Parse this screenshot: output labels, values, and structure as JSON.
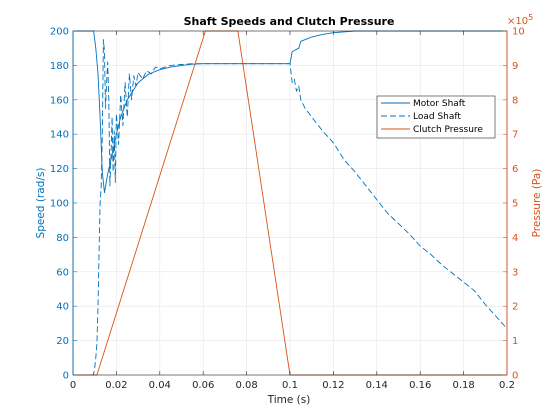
{
  "chart_data": {
    "type": "line",
    "title": "Shaft Speeds and Clutch Pressure",
    "xlabel": "Time (s)",
    "ylabel_left": "Speed (rad/s)",
    "ylabel_right": "Pressure (Pa)",
    "right_axis_multiplier": "×10",
    "right_axis_exponent": "5",
    "xlim": [
      0,
      0.2
    ],
    "ylim_left": [
      0,
      200
    ],
    "ylim_right": [
      0,
      10
    ],
    "grid": true,
    "legend_position": "upper-right",
    "colors": {
      "left_axis": "#0072BD",
      "right_axis": "#D95319",
      "grid": "#e6e6e6",
      "box": "#262626"
    },
    "x_ticks": [
      0,
      0.02,
      0.04,
      0.06,
      0.08,
      0.1,
      0.12,
      0.14,
      0.16,
      0.18,
      0.2
    ],
    "x_tick_labels": [
      "0",
      "0.02",
      "0.04",
      "0.06",
      "0.08",
      "0.1",
      "0.12",
      "0.14",
      "0.16",
      "0.18",
      "0.2"
    ],
    "y_left_ticks": [
      0,
      20,
      40,
      60,
      80,
      100,
      120,
      140,
      160,
      180,
      200
    ],
    "y_left_tick_labels": [
      "0",
      "20",
      "40",
      "60",
      "80",
      "100",
      "120",
      "140",
      "160",
      "180",
      "200"
    ],
    "y_right_ticks": [
      0,
      1,
      2,
      3,
      4,
      5,
      6,
      7,
      8,
      9,
      10
    ],
    "y_right_tick_labels": [
      "0",
      "1",
      "2",
      "3",
      "4",
      "5",
      "6",
      "7",
      "8",
      "9",
      "10"
    ],
    "series": [
      {
        "name": "Motor Shaft",
        "axis": "left",
        "color": "#0072BD",
        "style": "solid",
        "x": [
          0.0,
          0.0095,
          0.0105,
          0.0115,
          0.0125,
          0.0135,
          0.0145,
          0.016,
          0.018,
          0.02,
          0.022,
          0.025,
          0.028,
          0.03,
          0.035,
          0.04,
          0.045,
          0.05,
          0.055,
          0.06,
          0.07,
          0.08,
          0.09,
          0.1,
          0.101,
          0.104,
          0.105,
          0.108,
          0.11,
          0.115,
          0.12,
          0.13,
          0.14,
          0.2
        ],
        "y": [
          200,
          200,
          190,
          175,
          150,
          118,
          106,
          117,
          128,
          140,
          150,
          160,
          166,
          170,
          175,
          177.5,
          179,
          180,
          180.7,
          181,
          181,
          181,
          181,
          181,
          188,
          190,
          194,
          195.5,
          196.5,
          198,
          199,
          200,
          200,
          200
        ]
      },
      {
        "name": "Load Shaft",
        "axis": "left",
        "color": "#0072BD",
        "style": "dashed",
        "x": [
          0.0,
          0.009,
          0.0095,
          0.01,
          0.0105,
          0.011,
          0.0115,
          0.012,
          0.0125,
          0.013,
          0.0135,
          0.014,
          0.0145,
          0.015,
          0.0155,
          0.016,
          0.0165,
          0.017,
          0.0175,
          0.018,
          0.0185,
          0.019,
          0.0195,
          0.02,
          0.021,
          0.022,
          0.023,
          0.024,
          0.025,
          0.026,
          0.027,
          0.028,
          0.029,
          0.03,
          0.032,
          0.034,
          0.036,
          0.038,
          0.04,
          0.045,
          0.05,
          0.055,
          0.06,
          0.07,
          0.08,
          0.09,
          0.1,
          0.101,
          0.102,
          0.103,
          0.104,
          0.105,
          0.107,
          0.11,
          0.115,
          0.12,
          0.125,
          0.13,
          0.135,
          0.14,
          0.145,
          0.15,
          0.155,
          0.16,
          0.165,
          0.17,
          0.175,
          0.18,
          0.185,
          0.19,
          0.195,
          0.2
        ],
        "y": [
          0,
          0,
          0.5,
          4,
          10,
          18,
          40,
          70,
          100,
          110,
          140,
          195,
          188,
          155,
          170,
          182,
          160,
          110,
          128,
          150,
          118,
          142,
          112,
          152,
          134,
          163,
          145,
          170,
          150,
          175,
          160,
          174,
          168,
          176,
          172,
          177,
          175,
          179,
          178,
          180,
          180.5,
          181,
          181,
          181,
          181,
          181,
          181,
          170,
          172,
          165,
          168,
          160,
          155,
          150,
          142,
          135,
          125,
          118,
          110,
          102,
          94,
          88,
          82,
          75,
          70,
          64,
          59,
          54,
          49,
          41,
          34,
          27
        ]
      },
      {
        "name": "Clutch Pressure",
        "axis": "right",
        "color": "#D95319",
        "style": "solid",
        "x": [
          0.0,
          0.011,
          0.061,
          0.076,
          0.1,
          0.2
        ],
        "y": [
          0,
          0,
          10,
          10,
          0,
          0
        ]
      }
    ],
    "legend": [
      "Motor Shaft",
      "Load Shaft",
      "Clutch Pressure"
    ]
  }
}
